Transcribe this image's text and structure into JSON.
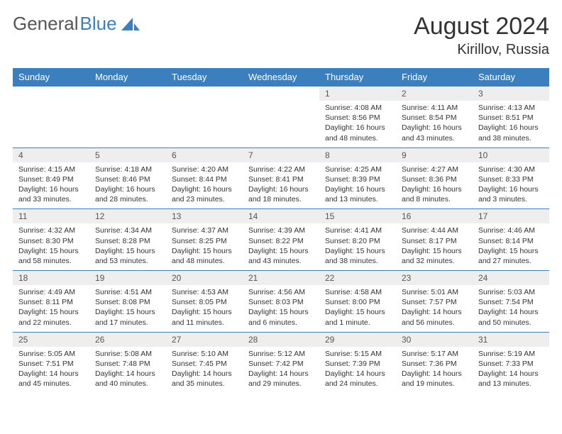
{
  "brand": {
    "part1": "General",
    "part2": "Blue"
  },
  "title": "August 2024",
  "location": "Kirillov, Russia",
  "colors": {
    "header_bg": "#3b7fbf",
    "header_text": "#ffffff",
    "daynum_bg": "#eeeeee",
    "border": "#3b7fbf",
    "body_text": "#333333",
    "page_bg": "#ffffff"
  },
  "dayHeaders": [
    "Sunday",
    "Monday",
    "Tuesday",
    "Wednesday",
    "Thursday",
    "Friday",
    "Saturday"
  ],
  "weeks": [
    [
      null,
      null,
      null,
      null,
      {
        "n": "1",
        "sr": "4:08 AM",
        "ss": "8:56 PM",
        "dl": "16 hours and 48 minutes."
      },
      {
        "n": "2",
        "sr": "4:11 AM",
        "ss": "8:54 PM",
        "dl": "16 hours and 43 minutes."
      },
      {
        "n": "3",
        "sr": "4:13 AM",
        "ss": "8:51 PM",
        "dl": "16 hours and 38 minutes."
      }
    ],
    [
      {
        "n": "4",
        "sr": "4:15 AM",
        "ss": "8:49 PM",
        "dl": "16 hours and 33 minutes."
      },
      {
        "n": "5",
        "sr": "4:18 AM",
        "ss": "8:46 PM",
        "dl": "16 hours and 28 minutes."
      },
      {
        "n": "6",
        "sr": "4:20 AM",
        "ss": "8:44 PM",
        "dl": "16 hours and 23 minutes."
      },
      {
        "n": "7",
        "sr": "4:22 AM",
        "ss": "8:41 PM",
        "dl": "16 hours and 18 minutes."
      },
      {
        "n": "8",
        "sr": "4:25 AM",
        "ss": "8:39 PM",
        "dl": "16 hours and 13 minutes."
      },
      {
        "n": "9",
        "sr": "4:27 AM",
        "ss": "8:36 PM",
        "dl": "16 hours and 8 minutes."
      },
      {
        "n": "10",
        "sr": "4:30 AM",
        "ss": "8:33 PM",
        "dl": "16 hours and 3 minutes."
      }
    ],
    [
      {
        "n": "11",
        "sr": "4:32 AM",
        "ss": "8:30 PM",
        "dl": "15 hours and 58 minutes."
      },
      {
        "n": "12",
        "sr": "4:34 AM",
        "ss": "8:28 PM",
        "dl": "15 hours and 53 minutes."
      },
      {
        "n": "13",
        "sr": "4:37 AM",
        "ss": "8:25 PM",
        "dl": "15 hours and 48 minutes."
      },
      {
        "n": "14",
        "sr": "4:39 AM",
        "ss": "8:22 PM",
        "dl": "15 hours and 43 minutes."
      },
      {
        "n": "15",
        "sr": "4:41 AM",
        "ss": "8:20 PM",
        "dl": "15 hours and 38 minutes."
      },
      {
        "n": "16",
        "sr": "4:44 AM",
        "ss": "8:17 PM",
        "dl": "15 hours and 32 minutes."
      },
      {
        "n": "17",
        "sr": "4:46 AM",
        "ss": "8:14 PM",
        "dl": "15 hours and 27 minutes."
      }
    ],
    [
      {
        "n": "18",
        "sr": "4:49 AM",
        "ss": "8:11 PM",
        "dl": "15 hours and 22 minutes."
      },
      {
        "n": "19",
        "sr": "4:51 AM",
        "ss": "8:08 PM",
        "dl": "15 hours and 17 minutes."
      },
      {
        "n": "20",
        "sr": "4:53 AM",
        "ss": "8:05 PM",
        "dl": "15 hours and 11 minutes."
      },
      {
        "n": "21",
        "sr": "4:56 AM",
        "ss": "8:03 PM",
        "dl": "15 hours and 6 minutes."
      },
      {
        "n": "22",
        "sr": "4:58 AM",
        "ss": "8:00 PM",
        "dl": "15 hours and 1 minute."
      },
      {
        "n": "23",
        "sr": "5:01 AM",
        "ss": "7:57 PM",
        "dl": "14 hours and 56 minutes."
      },
      {
        "n": "24",
        "sr": "5:03 AM",
        "ss": "7:54 PM",
        "dl": "14 hours and 50 minutes."
      }
    ],
    [
      {
        "n": "25",
        "sr": "5:05 AM",
        "ss": "7:51 PM",
        "dl": "14 hours and 45 minutes."
      },
      {
        "n": "26",
        "sr": "5:08 AM",
        "ss": "7:48 PM",
        "dl": "14 hours and 40 minutes."
      },
      {
        "n": "27",
        "sr": "5:10 AM",
        "ss": "7:45 PM",
        "dl": "14 hours and 35 minutes."
      },
      {
        "n": "28",
        "sr": "5:12 AM",
        "ss": "7:42 PM",
        "dl": "14 hours and 29 minutes."
      },
      {
        "n": "29",
        "sr": "5:15 AM",
        "ss": "7:39 PM",
        "dl": "14 hours and 24 minutes."
      },
      {
        "n": "30",
        "sr": "5:17 AM",
        "ss": "7:36 PM",
        "dl": "14 hours and 19 minutes."
      },
      {
        "n": "31",
        "sr": "5:19 AM",
        "ss": "7:33 PM",
        "dl": "14 hours and 13 minutes."
      }
    ]
  ],
  "labels": {
    "sunrise": "Sunrise:",
    "sunset": "Sunset:",
    "daylight": "Daylight:"
  }
}
